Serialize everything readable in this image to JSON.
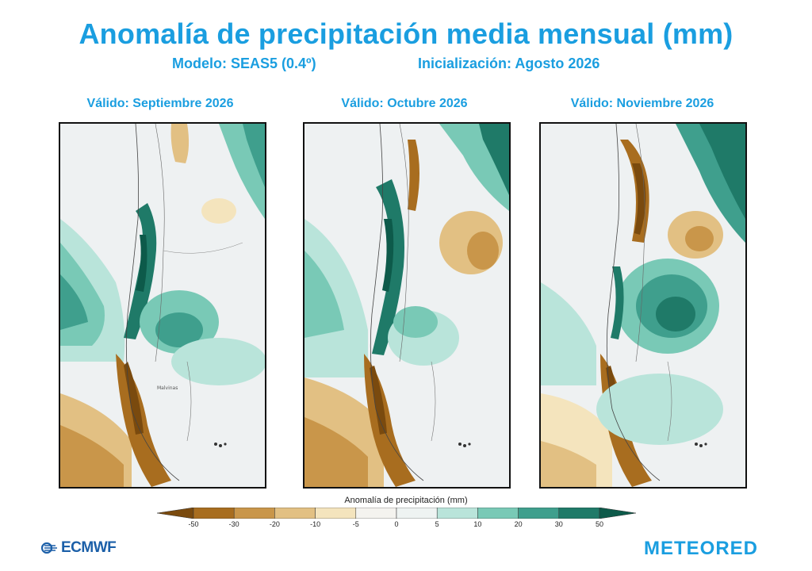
{
  "title": "Anomalía de precipitación media mensual (mm)",
  "model": "Modelo: SEAS5 (0.4º)",
  "init": "Inicialización: Agosto 2026",
  "panels": [
    {
      "label": "Válido: Septiembre 2026"
    },
    {
      "label": "Válido: Octubre 2026"
    },
    {
      "label": "Válido: Noviembre 2026"
    }
  ],
  "colorbar": {
    "title": "Anomalía de precipitación (mm)",
    "ticks": [
      "-50",
      "-30",
      "-20",
      "-10",
      "-5",
      "0",
      "5",
      "10",
      "20",
      "30",
      "50"
    ],
    "colors": [
      "#7a4a0e",
      "#a86d1f",
      "#c9964a",
      "#e2c083",
      "#f4e4bd",
      "#f4f3ef",
      "#eef3f2",
      "#b9e4da",
      "#79c9b6",
      "#3f9f8d",
      "#1f7a68",
      "#0d5a4a"
    ]
  },
  "logos": {
    "left": "ECMWF",
    "right": "METEORED"
  },
  "islands_label": "Malvinas"
}
